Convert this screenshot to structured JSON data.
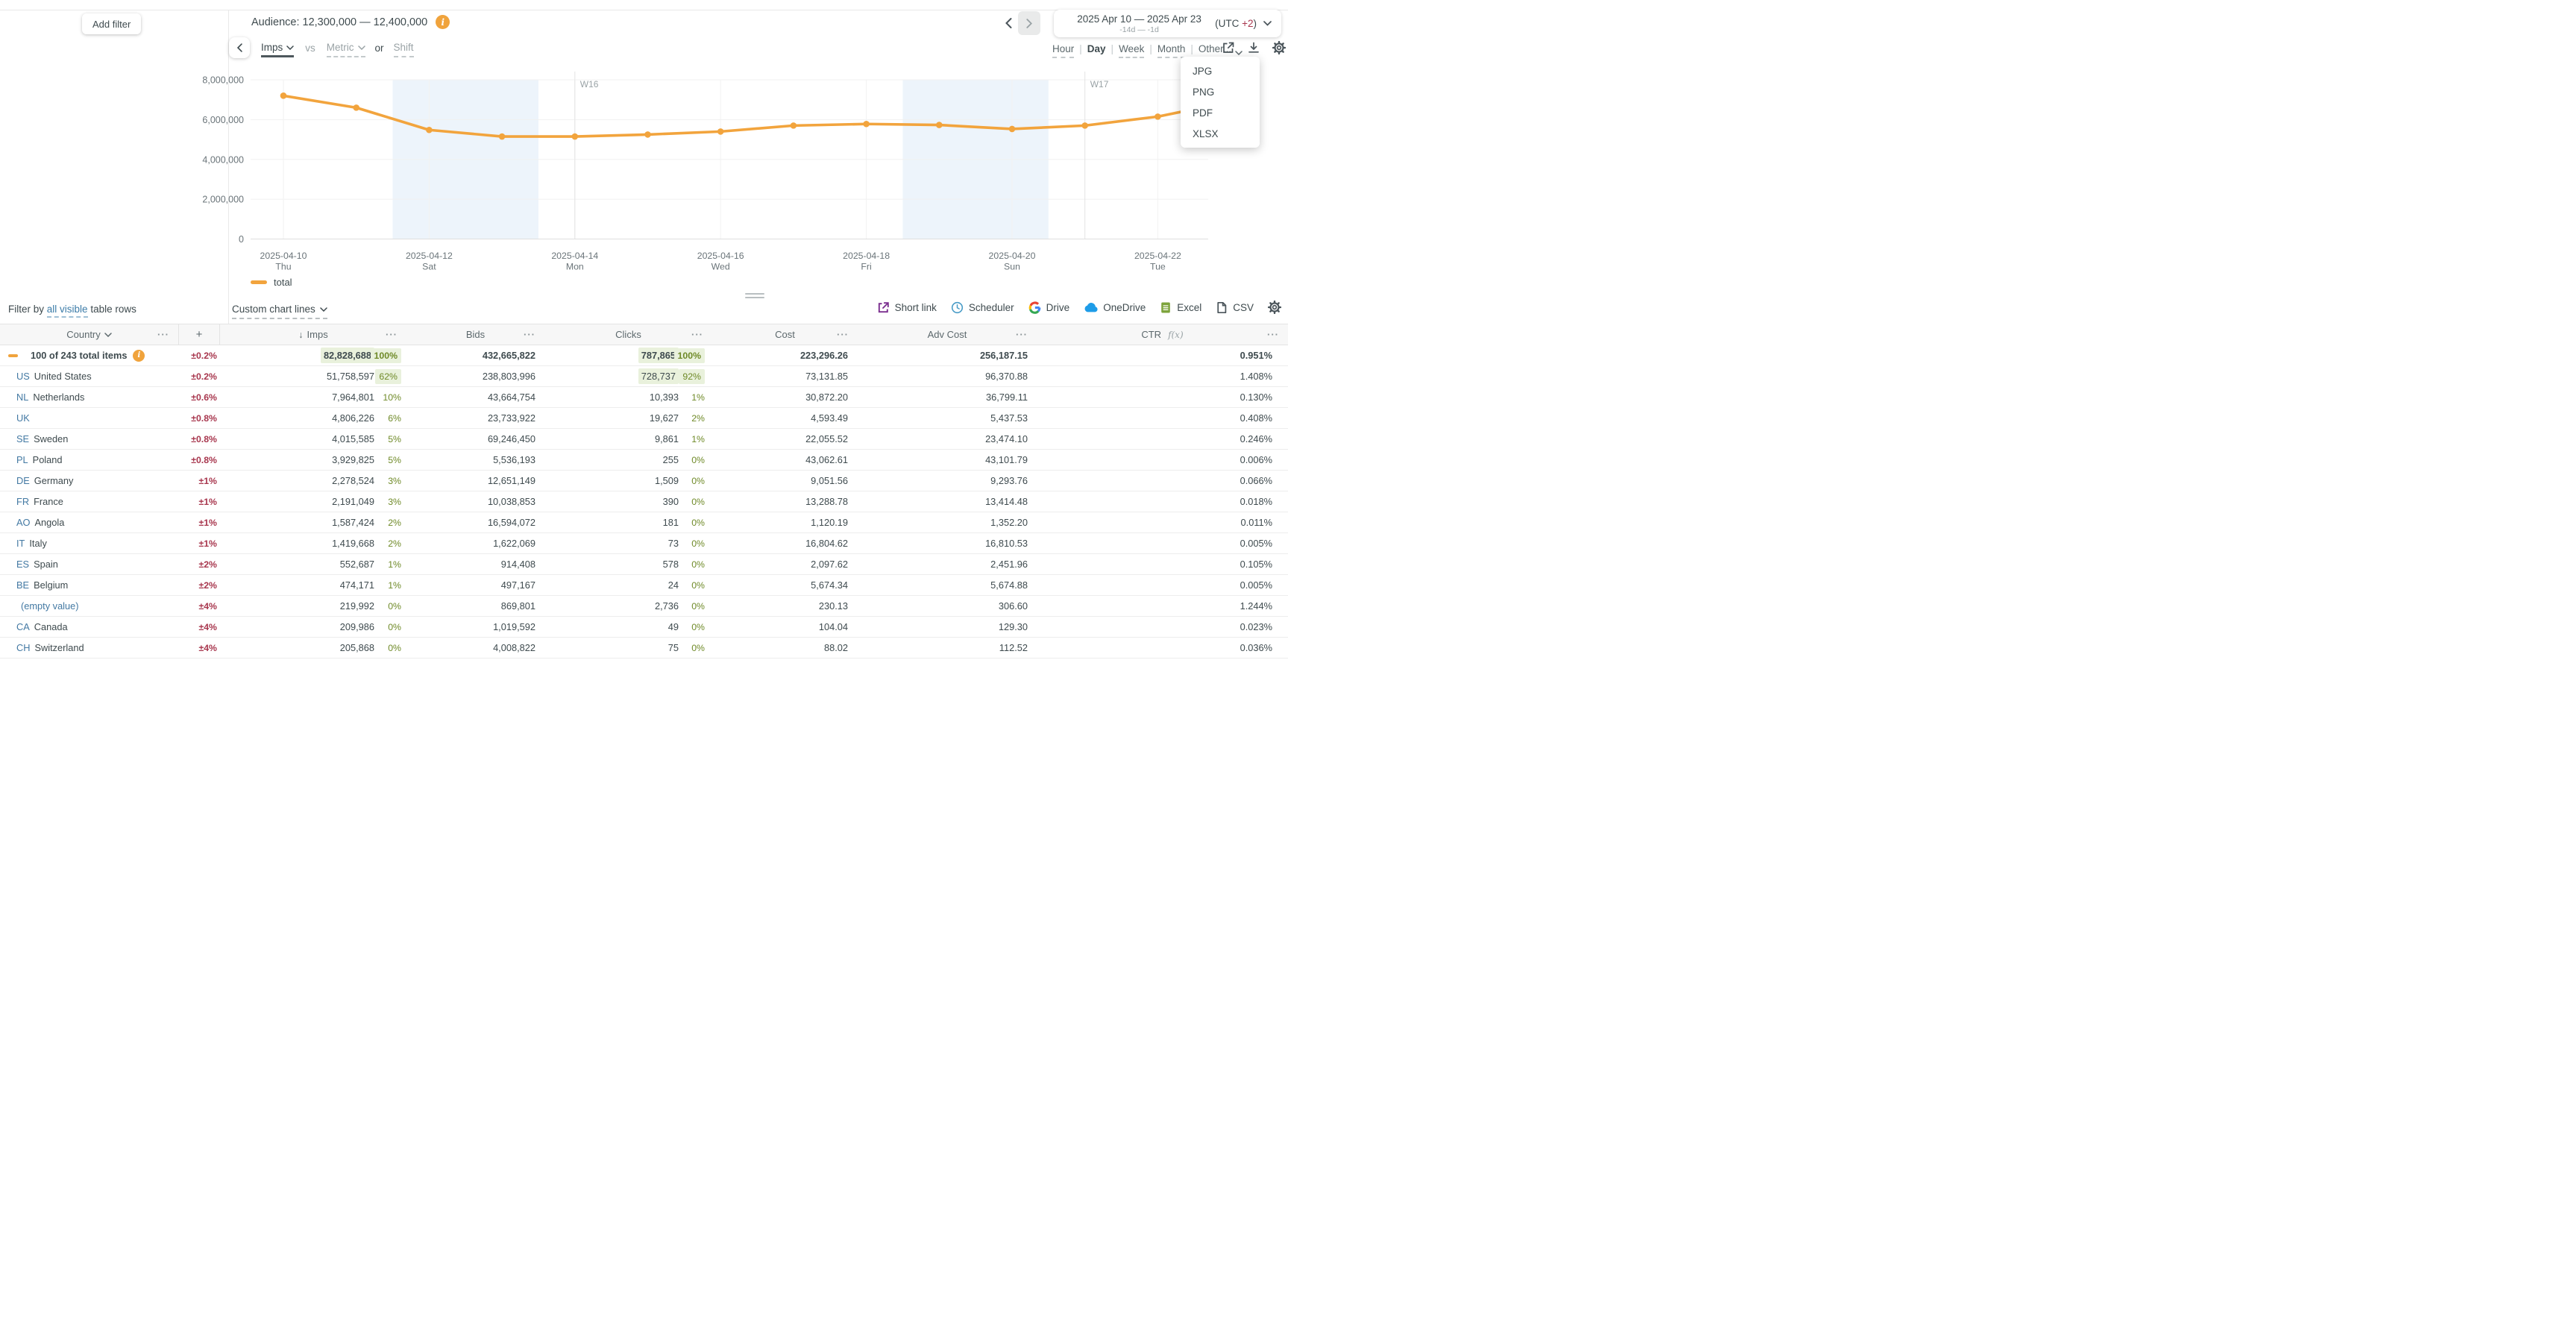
{
  "top_bar": {
    "add_filter": "Add filter",
    "audience_label": "Audience: 12,300,000 — 12,400,000",
    "date_range": {
      "title": "2025 Apr 10 — 2025 Apr 23",
      "subtitle": "-14d — -1d",
      "utc_prefix": "(UTC ",
      "utc_offset": "+2",
      "utc_suffix": ")"
    }
  },
  "chart_controls": {
    "primary_metric": "Imps",
    "vs_label": "vs",
    "secondary_metric": "Metric",
    "or_label": "or",
    "shift_label": "Shift"
  },
  "granularity": {
    "options": [
      "Hour",
      "Day",
      "Week",
      "Month",
      "Other..."
    ],
    "selected": "Day"
  },
  "export_menu": [
    "JPG",
    "PNG",
    "PDF",
    "XLSX"
  ],
  "chart_data": {
    "type": "line",
    "title": "Audience: 12,300,000 — 12,400,000",
    "xlabel": "",
    "ylabel": "",
    "ylim": [
      0,
      8000000
    ],
    "grid": true,
    "legend_position": "bottom-left",
    "series": [
      {
        "name": "total",
        "color": "#F2A43D",
        "x": [
          "2025-04-10",
          "2025-04-11",
          "2025-04-12",
          "2025-04-13",
          "2025-04-14",
          "2025-04-15",
          "2025-04-16",
          "2025-04-17",
          "2025-04-18",
          "2025-04-19",
          "2025-04-20",
          "2025-04-21",
          "2025-04-22",
          "2025-04-23"
        ],
        "values": [
          7200000,
          6600000,
          5480000,
          5150000,
          5150000,
          5250000,
          5400000,
          5700000,
          5780000,
          5730000,
          5530000,
          5700000,
          6150000,
          6900000
        ]
      }
    ],
    "yticks": [
      {
        "v": 0,
        "label": "0"
      },
      {
        "v": 2000000,
        "label": "2,000,000"
      },
      {
        "v": 4000000,
        "label": "4,000,000"
      },
      {
        "v": 6000000,
        "label": "6,000,000"
      },
      {
        "v": 8000000,
        "label": "8,000,000"
      }
    ],
    "xticks": [
      {
        "i": 0,
        "date": "2025-04-10",
        "day": "Thu"
      },
      {
        "i": 2,
        "date": "2025-04-12",
        "day": "Sat"
      },
      {
        "i": 4,
        "date": "2025-04-14",
        "day": "Mon"
      },
      {
        "i": 6,
        "date": "2025-04-16",
        "day": "Wed"
      },
      {
        "i": 8,
        "date": "2025-04-18",
        "day": "Fri"
      },
      {
        "i": 10,
        "date": "2025-04-20",
        "day": "Sun"
      },
      {
        "i": 12,
        "date": "2025-04-22",
        "day": "Tue"
      }
    ],
    "week_markers": [
      {
        "i": 4,
        "label": "W16"
      },
      {
        "i": 11,
        "label": "W17"
      }
    ],
    "weekend_bands": [
      [
        2,
        3
      ],
      [
        9,
        10
      ]
    ]
  },
  "legend": "total",
  "filter_row": {
    "prefix": "Filter by",
    "link": "all visible",
    "suffix": "table rows"
  },
  "custom_chart_lines": "Custom chart lines",
  "share_toolbar": [
    "Short link",
    "Scheduler",
    "Drive",
    "OneDrive",
    "Excel",
    "CSV"
  ],
  "table": {
    "header": {
      "country": "Country",
      "plus": "+",
      "sort_icon": "↓",
      "imps": "Imps",
      "bids": "Bids",
      "clicks": "Clicks",
      "cost": "Cost",
      "adv_cost": "Adv Cost",
      "ctr": "CTR",
      "ctr_suffix": "f(x)",
      "menu_icon": "···"
    },
    "totals": {
      "label": "100 of 243 total items",
      "pm": "±0.2%",
      "imps": "82,828,688",
      "imps_pct": "100%",
      "bids": "432,665,822",
      "clicks": "787,865",
      "clicks_pct": "100%",
      "cost": "223,296.26",
      "adv_cost": "256,187.15",
      "ctr": "0.951%"
    },
    "rows": [
      {
        "code": "US",
        "name": "United States",
        "pm": "±0.2%",
        "imps": "51,758,597",
        "imps_pct": "62%",
        "imps_hl": true,
        "bids": "238,803,996",
        "clicks": "728,737",
        "clicks_pct": "92%",
        "clicks_hl": true,
        "cost": "73,131.85",
        "adv_cost": "96,370.88",
        "ctr": "1.408%"
      },
      {
        "code": "NL",
        "name": "Netherlands",
        "pm": "±0.6%",
        "imps": "7,964,801",
        "imps_pct": "10%",
        "bids": "43,664,754",
        "clicks": "10,393",
        "clicks_pct": "1%",
        "cost": "30,872.20",
        "adv_cost": "36,799.11",
        "ctr": "0.130%"
      },
      {
        "code": "UK",
        "name": "",
        "pm": "±0.8%",
        "imps": "4,806,226",
        "imps_pct": "6%",
        "bids": "23,733,922",
        "clicks": "19,627",
        "clicks_pct": "2%",
        "cost": "4,593.49",
        "adv_cost": "5,437.53",
        "ctr": "0.408%"
      },
      {
        "code": "SE",
        "name": "Sweden",
        "pm": "±0.8%",
        "imps": "4,015,585",
        "imps_pct": "5%",
        "bids": "69,246,450",
        "clicks": "9,861",
        "clicks_pct": "1%",
        "cost": "22,055.52",
        "adv_cost": "23,474.10",
        "ctr": "0.246%"
      },
      {
        "code": "PL",
        "name": "Poland",
        "pm": "±0.8%",
        "imps": "3,929,825",
        "imps_pct": "5%",
        "bids": "5,536,193",
        "clicks": "255",
        "clicks_pct": "0%",
        "cost": "43,062.61",
        "adv_cost": "43,101.79",
        "ctr": "0.006%"
      },
      {
        "code": "DE",
        "name": "Germany",
        "pm": "±1%",
        "imps": "2,278,524",
        "imps_pct": "3%",
        "bids": "12,651,149",
        "clicks": "1,509",
        "clicks_pct": "0%",
        "cost": "9,051.56",
        "adv_cost": "9,293.76",
        "ctr": "0.066%"
      },
      {
        "code": "FR",
        "name": "France",
        "pm": "±1%",
        "imps": "2,191,049",
        "imps_pct": "3%",
        "bids": "10,038,853",
        "clicks": "390",
        "clicks_pct": "0%",
        "cost": "13,288.78",
        "adv_cost": "13,414.48",
        "ctr": "0.018%"
      },
      {
        "code": "AO",
        "name": "Angola",
        "pm": "±1%",
        "imps": "1,587,424",
        "imps_pct": "2%",
        "bids": "16,594,072",
        "clicks": "181",
        "clicks_pct": "0%",
        "cost": "1,120.19",
        "adv_cost": "1,352.20",
        "ctr": "0.011%"
      },
      {
        "code": "IT",
        "name": "Italy",
        "pm": "±1%",
        "imps": "1,419,668",
        "imps_pct": "2%",
        "bids": "1,622,069",
        "clicks": "73",
        "clicks_pct": "0%",
        "cost": "16,804.62",
        "adv_cost": "16,810.53",
        "ctr": "0.005%"
      },
      {
        "code": "ES",
        "name": "Spain",
        "pm": "±2%",
        "imps": "552,687",
        "imps_pct": "1%",
        "bids": "914,408",
        "clicks": "578",
        "clicks_pct": "0%",
        "cost": "2,097.62",
        "adv_cost": "2,451.96",
        "ctr": "0.105%"
      },
      {
        "code": "BE",
        "name": "Belgium",
        "pm": "±2%",
        "imps": "474,171",
        "imps_pct": "1%",
        "bids": "497,167",
        "clicks": "24",
        "clicks_pct": "0%",
        "cost": "5,674.34",
        "adv_cost": "5,674.88",
        "ctr": "0.005%"
      },
      {
        "code": "",
        "name": "(empty value)",
        "pm": "±4%",
        "imps": "219,992",
        "imps_pct": "0%",
        "bids": "869,801",
        "clicks": "2,736",
        "clicks_pct": "0%",
        "cost": "230.13",
        "adv_cost": "306.60",
        "ctr": "1.244%"
      },
      {
        "code": "CA",
        "name": "Canada",
        "pm": "±4%",
        "imps": "209,986",
        "imps_pct": "0%",
        "bids": "1,019,592",
        "clicks": "49",
        "clicks_pct": "0%",
        "cost": "104.04",
        "adv_cost": "129.30",
        "ctr": "0.023%"
      },
      {
        "code": "CH",
        "name": "Switzerland",
        "pm": "±4%",
        "imps": "205,868",
        "imps_pct": "0%",
        "bids": "4,008,822",
        "clicks": "75",
        "clicks_pct": "0%",
        "cost": "88.02",
        "adv_cost": "112.52",
        "ctr": "0.036%"
      }
    ]
  },
  "colors": {
    "accent_orange": "#F2A43D",
    "link_blue": "#3C7CA8",
    "pm_red": "#A8374E",
    "pct_green": "#6F8A28",
    "highlight_green": "#E9F1DC",
    "weekend_band": "#EDF4FB"
  }
}
